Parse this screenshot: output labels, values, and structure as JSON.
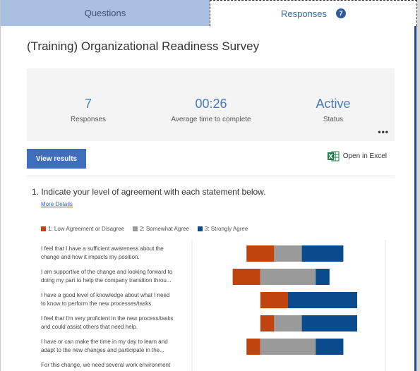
{
  "tabs": {
    "questions": "Questions",
    "responses": "Responses",
    "responses_badge": "7"
  },
  "survey_title": "(Training) Organizational Readiness Survey",
  "summary": {
    "responses_value": "7",
    "responses_label": "Responses",
    "avg_time_value": "00:26",
    "avg_time_label": "Average time to complete",
    "status_value": "Active",
    "status_label": "Status",
    "more_icon": "ellipsis-icon"
  },
  "actions": {
    "view_results": "View results",
    "open_in_excel": "Open in Excel"
  },
  "question": {
    "text": "1.  Indicate your level of agreement with each statement below.",
    "more_details": "More Details"
  },
  "legend": [
    {
      "label": "1: Low Agreement or Disagree",
      "color": "#c0440e"
    },
    {
      "label": "2: Somewhat Agree",
      "color": "#9a9a9a"
    },
    {
      "label": "3: Strongly Agree",
      "color": "#0b4a8c"
    }
  ],
  "statements": [
    {
      "line1": "I feel that I have a sufficient awareness about the",
      "line2": "change and how it impacts my position."
    },
    {
      "line1": "I am supportive of the change and looking forward to",
      "line2": "doing my part to help the company transition throu..."
    },
    {
      "line1": "I have a good level of knowledge about what I need",
      "line2": "to know to perform the new processes/tasks."
    },
    {
      "line1": "I feel that I'm very proficient in the new process/tasks",
      "line2": "and could assist others that need help."
    },
    {
      "line1": "I have or can make the time in my day to learn and",
      "line2": "adapt to the new changes and participate in the..."
    },
    {
      "line1": "For this change, we need several work environment",
      "line2": ""
    }
  ],
  "chart_data": {
    "type": "bar",
    "stacked": "diverging",
    "categories": [
      "I feel that I have a sufficient awareness about the change and how it impacts my position.",
      "I am supportive of the change and looking forward to doing my part to help the company transition throu...",
      "I have a good level of knowledge about what I need to know to perform the new processes/tasks.",
      "I feel that I'm very proficient in the new process/tasks and could assist others that need help.",
      "I have or can make the time in my day to learn and adapt to the new changes and participate in the..."
    ],
    "series": [
      {
        "name": "1: Low Agreement or Disagree",
        "values": [
          2,
          2,
          2,
          1,
          1
        ],
        "color": "#c0440e"
      },
      {
        "name": "2: Somewhat Agree",
        "values": [
          2,
          4,
          0,
          2,
          4
        ],
        "color": "#9a9a9a"
      },
      {
        "name": "3: Strongly Agree",
        "values": [
          3,
          1,
          5,
          4,
          2
        ],
        "color": "#0b4a8c"
      }
    ]
  }
}
